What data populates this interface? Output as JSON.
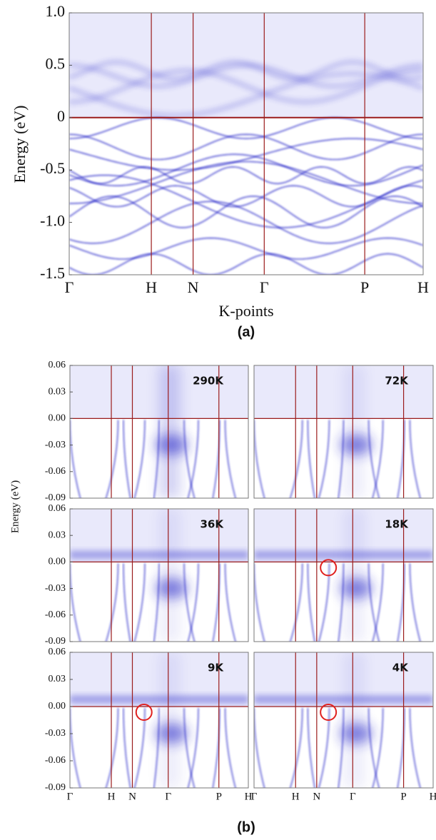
{
  "chart_data": [
    {
      "type": "band-structure",
      "caption": "(a)",
      "ylabel": "Energy (eV)",
      "xlabel": "K-points",
      "kpoints": [
        "Γ",
        "H",
        "N",
        "Γ",
        "P",
        "H"
      ],
      "ylim": [
        -1.5,
        1.0
      ],
      "yticks": [
        {
          "value": 1,
          "label": "1.0"
        },
        0.5,
        0,
        -0.5,
        {
          "value": -1,
          "label": "-1.0"
        },
        -1.5
      ],
      "fermi_level": 0,
      "line_color": "#9b1c1c",
      "band_color": "#2626c8"
    },
    {
      "type": "band-structure",
      "panel_label": "290K",
      "ylim": [
        -0.09,
        0.06
      ],
      "yticks": [
        0.06,
        0.03,
        {
          "value": 0,
          "label": "0.00"
        },
        -0.03,
        -0.06,
        -0.09
      ],
      "fermi_level": 0,
      "line_color": "#9b1c1c",
      "band_color": "#2626c8"
    },
    {
      "type": "band-structure",
      "panel_label": "72K",
      "ylim": [
        -0.09,
        0.06
      ],
      "fermi_level": 0,
      "line_color": "#9b1c1c",
      "band_color": "#2626c8"
    },
    {
      "type": "band-structure",
      "panel_label": "36K",
      "ylim": [
        -0.09,
        0.06
      ],
      "yticks": [
        0.06,
        0.03,
        {
          "value": 0,
          "label": "0.00"
        },
        -0.03,
        -0.06,
        -0.09
      ],
      "fermi_level": 0,
      "line_color": "#9b1c1c",
      "band_color": "#2626c8"
    },
    {
      "type": "band-structure",
      "panel_label": "18K",
      "ylim": [
        -0.09,
        0.06
      ],
      "highlight_circle": true,
      "fermi_level": 0,
      "line_color": "#9b1c1c",
      "band_color": "#2626c8"
    },
    {
      "type": "band-structure",
      "panel_label": "9K",
      "ylim": [
        -0.09,
        0.06
      ],
      "highlight_circle": true,
      "yticks": [
        0.06,
        0.03,
        {
          "value": 0,
          "label": "0.00"
        },
        -0.03,
        -0.06,
        -0.09
      ],
      "kpoints": [
        "Γ",
        "H",
        "N",
        "Γ",
        "P",
        "H"
      ],
      "fermi_level": 0,
      "line_color": "#9b1c1c",
      "band_color": "#2626c8"
    },
    {
      "type": "band-structure",
      "panel_label": "4K",
      "ylim": [
        -0.09,
        0.06
      ],
      "highlight_circle": true,
      "kpoints": [
        "Γ",
        "H",
        "N",
        "Γ",
        "P",
        "H"
      ],
      "fermi_level": 0,
      "line_color": "#9b1c1c",
      "band_color": "#2626c8"
    }
  ],
  "figure_b": {
    "ylabel": "Energy (eV)",
    "caption": "(b)"
  }
}
